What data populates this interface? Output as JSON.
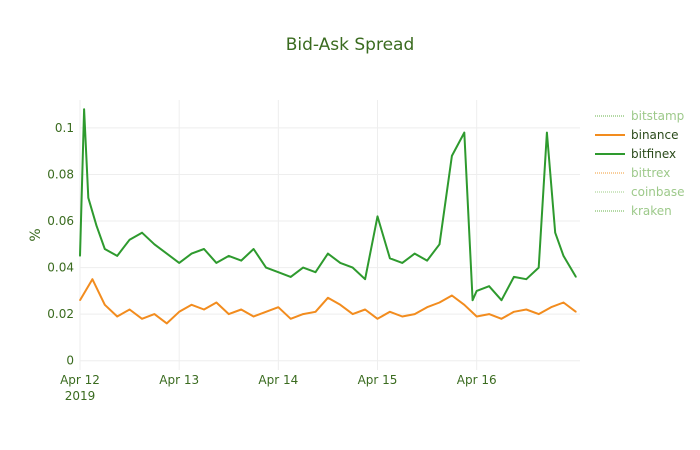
{
  "chart_data": {
    "type": "line",
    "title": "Bid-Ask Spread",
    "xlabel": "",
    "ylabel": "%",
    "xlim": [
      "2019-04-12",
      "2019-04-17 01:00"
    ],
    "ylim": [
      -0.004,
      0.112
    ],
    "x_ticks": [
      {
        "date": "2019-04-12",
        "label": "Apr 12",
        "sublabel": "2019"
      },
      {
        "date": "2019-04-13",
        "label": "Apr 13",
        "sublabel": ""
      },
      {
        "date": "2019-04-14",
        "label": "Apr 14",
        "sublabel": ""
      },
      {
        "date": "2019-04-15",
        "label": "Apr 15",
        "sublabel": ""
      },
      {
        "date": "2019-04-16",
        "label": "Apr 16",
        "sublabel": ""
      }
    ],
    "y_ticks": [
      {
        "value": 0,
        "label": "0"
      },
      {
        "value": 0.02,
        "label": "0.02"
      },
      {
        "value": 0.04,
        "label": "0.04"
      },
      {
        "value": 0.06,
        "label": "0.06"
      },
      {
        "value": 0.08,
        "label": "0.08"
      },
      {
        "value": 0.1,
        "label": "0.1"
      }
    ],
    "grid": true,
    "legend_position": "right",
    "series": [
      {
        "name": "bitstamp",
        "color": "#8fc77a",
        "visible": false,
        "points": []
      },
      {
        "name": "binance",
        "color": "#f28c1e",
        "visible": true,
        "points": [
          [
            "2019-04-12 00:00",
            0.026
          ],
          [
            "2019-04-12 03:00",
            0.035
          ],
          [
            "2019-04-12 06:00",
            0.024
          ],
          [
            "2019-04-12 09:00",
            0.019
          ],
          [
            "2019-04-12 12:00",
            0.022
          ],
          [
            "2019-04-12 15:00",
            0.018
          ],
          [
            "2019-04-12 18:00",
            0.02
          ],
          [
            "2019-04-12 21:00",
            0.016
          ],
          [
            "2019-04-13 00:00",
            0.021
          ],
          [
            "2019-04-13 03:00",
            0.024
          ],
          [
            "2019-04-13 06:00",
            0.022
          ],
          [
            "2019-04-13 09:00",
            0.025
          ],
          [
            "2019-04-13 12:00",
            0.02
          ],
          [
            "2019-04-13 15:00",
            0.022
          ],
          [
            "2019-04-13 18:00",
            0.019
          ],
          [
            "2019-04-13 21:00",
            0.021
          ],
          [
            "2019-04-14 00:00",
            0.023
          ],
          [
            "2019-04-14 03:00",
            0.018
          ],
          [
            "2019-04-14 06:00",
            0.02
          ],
          [
            "2019-04-14 09:00",
            0.021
          ],
          [
            "2019-04-14 12:00",
            0.027
          ],
          [
            "2019-04-14 15:00",
            0.024
          ],
          [
            "2019-04-14 18:00",
            0.02
          ],
          [
            "2019-04-14 21:00",
            0.022
          ],
          [
            "2019-04-15 00:00",
            0.018
          ],
          [
            "2019-04-15 03:00",
            0.021
          ],
          [
            "2019-04-15 06:00",
            0.019
          ],
          [
            "2019-04-15 09:00",
            0.02
          ],
          [
            "2019-04-15 12:00",
            0.023
          ],
          [
            "2019-04-15 15:00",
            0.025
          ],
          [
            "2019-04-15 18:00",
            0.028
          ],
          [
            "2019-04-15 21:00",
            0.024
          ],
          [
            "2019-04-16 00:00",
            0.019
          ],
          [
            "2019-04-16 03:00",
            0.02
          ],
          [
            "2019-04-16 06:00",
            0.018
          ],
          [
            "2019-04-16 09:00",
            0.021
          ],
          [
            "2019-04-16 12:00",
            0.022
          ],
          [
            "2019-04-16 15:00",
            0.02
          ],
          [
            "2019-04-16 18:00",
            0.023
          ],
          [
            "2019-04-16 21:00",
            0.025
          ],
          [
            "2019-04-17 00:00",
            0.021
          ]
        ]
      },
      {
        "name": "bitfinex",
        "color": "#2e9a2e",
        "visible": true,
        "points": [
          [
            "2019-04-12 00:00",
            0.045
          ],
          [
            "2019-04-12 01:00",
            0.108
          ],
          [
            "2019-04-12 02:00",
            0.07
          ],
          [
            "2019-04-12 04:00",
            0.058
          ],
          [
            "2019-04-12 06:00",
            0.048
          ],
          [
            "2019-04-12 09:00",
            0.045
          ],
          [
            "2019-04-12 12:00",
            0.052
          ],
          [
            "2019-04-12 15:00",
            0.055
          ],
          [
            "2019-04-12 18:00",
            0.05
          ],
          [
            "2019-04-13 00:00",
            0.042
          ],
          [
            "2019-04-13 03:00",
            0.046
          ],
          [
            "2019-04-13 06:00",
            0.048
          ],
          [
            "2019-04-13 09:00",
            0.042
          ],
          [
            "2019-04-13 12:00",
            0.045
          ],
          [
            "2019-04-13 15:00",
            0.043
          ],
          [
            "2019-04-13 18:00",
            0.048
          ],
          [
            "2019-04-13 21:00",
            0.04
          ],
          [
            "2019-04-14 00:00",
            0.038
          ],
          [
            "2019-04-14 03:00",
            0.036
          ],
          [
            "2019-04-14 06:00",
            0.04
          ],
          [
            "2019-04-14 09:00",
            0.038
          ],
          [
            "2019-04-14 12:00",
            0.046
          ],
          [
            "2019-04-14 15:00",
            0.042
          ],
          [
            "2019-04-14 18:00",
            0.04
          ],
          [
            "2019-04-14 21:00",
            0.035
          ],
          [
            "2019-04-15 00:00",
            0.062
          ],
          [
            "2019-04-15 03:00",
            0.044
          ],
          [
            "2019-04-15 06:00",
            0.042
          ],
          [
            "2019-04-15 09:00",
            0.046
          ],
          [
            "2019-04-15 12:00",
            0.043
          ],
          [
            "2019-04-15 15:00",
            0.05
          ],
          [
            "2019-04-15 18:00",
            0.088
          ],
          [
            "2019-04-15 21:00",
            0.098
          ],
          [
            "2019-04-15 23:00",
            0.026
          ],
          [
            "2019-04-16 00:00",
            0.03
          ],
          [
            "2019-04-16 03:00",
            0.032
          ],
          [
            "2019-04-16 06:00",
            0.026
          ],
          [
            "2019-04-16 09:00",
            0.036
          ],
          [
            "2019-04-16 12:00",
            0.035
          ],
          [
            "2019-04-16 15:00",
            0.04
          ],
          [
            "2019-04-16 17:00",
            0.098
          ],
          [
            "2019-04-16 19:00",
            0.055
          ],
          [
            "2019-04-16 21:00",
            0.045
          ],
          [
            "2019-04-17 00:00",
            0.036
          ]
        ]
      },
      {
        "name": "bittrex",
        "color": "#f4b56b",
        "visible": false,
        "points": []
      },
      {
        "name": "coinbase",
        "color": "#b7dba6",
        "visible": false,
        "points": []
      },
      {
        "name": "kraken",
        "color": "#8fc77a",
        "visible": false,
        "points": []
      }
    ]
  }
}
